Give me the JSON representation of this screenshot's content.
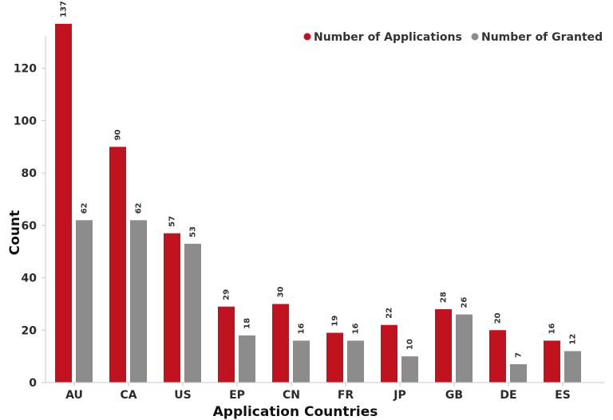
{
  "chart_data": {
    "type": "bar",
    "title": "",
    "xlabel": "Application Countries",
    "ylabel": "Count",
    "categories": [
      "AU",
      "CA",
      "US",
      "EP",
      "CN",
      "FR",
      "JP",
      "GB",
      "DE",
      "ES"
    ],
    "series": [
      {
        "name": "Number of Applications",
        "color": "#c1121f",
        "values": [
          137,
          90,
          57,
          29,
          30,
          19,
          22,
          28,
          20,
          16
        ]
      },
      {
        "name": "Number of Granted",
        "color": "#8c8c8c",
        "values": [
          62,
          62,
          53,
          18,
          16,
          16,
          10,
          26,
          7,
          12
        ]
      }
    ],
    "ylim": [
      0,
      140
    ],
    "yticks": [
      0,
      20,
      40,
      60,
      80,
      100,
      120
    ],
    "grid": false,
    "legend_position": "top-right"
  }
}
